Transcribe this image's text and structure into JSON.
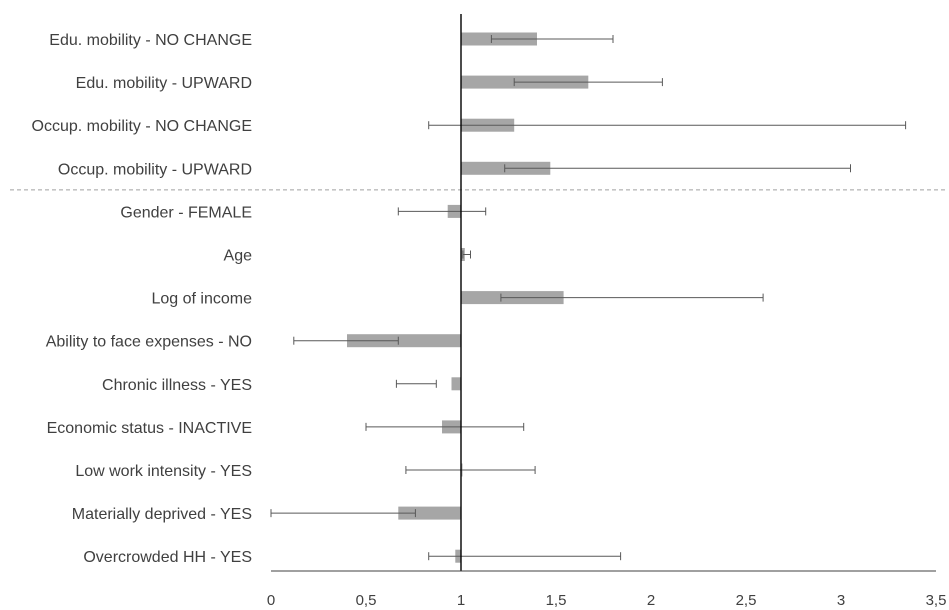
{
  "chart_data": {
    "type": "bar",
    "orientation": "horizontal",
    "reference_value": 1,
    "categories": [
      "Edu. mobility - NO CHANGE",
      "Edu. mobility - UPWARD",
      "Occup. mobility - NO CHANGE",
      "Occup. mobility - UPWARD",
      "Gender - FEMALE",
      "Age",
      "Log of income",
      "Ability to face expenses - NO",
      "Chronic illness - YES",
      "Economic status - INACTIVE",
      "Low work intensity - YES",
      "Materially deprived - YES",
      "Overcrowded HH - YES"
    ],
    "values": [
      1.4,
      1.67,
      1.28,
      1.47,
      0.93,
      1.02,
      1.54,
      0.4,
      0.95,
      0.9,
      1.0,
      0.67,
      0.97
    ],
    "ci_low": [
      1.16,
      1.28,
      0.83,
      1.23,
      0.67,
      1.01,
      1.21,
      0.12,
      0.66,
      0.5,
      0.71,
      0.0,
      0.83
    ],
    "ci_high": [
      1.8,
      2.06,
      3.34,
      3.05,
      1.13,
      1.05,
      2.59,
      0.67,
      0.87,
      1.33,
      1.39,
      0.76,
      1.84
    ],
    "xlim": [
      0,
      3.5
    ],
    "xticks": [
      0,
      0.5,
      1,
      1.5,
      2,
      2.5,
      3,
      3.5
    ],
    "xtick_labels": [
      "0",
      "0,5",
      "1",
      "1,5",
      "2",
      "2,5",
      "3",
      "3,5"
    ],
    "separator_after_index": 3,
    "bar_color": "#a6a6a6",
    "line_color": "#595959",
    "title": "",
    "xlabel": "",
    "ylabel": ""
  }
}
